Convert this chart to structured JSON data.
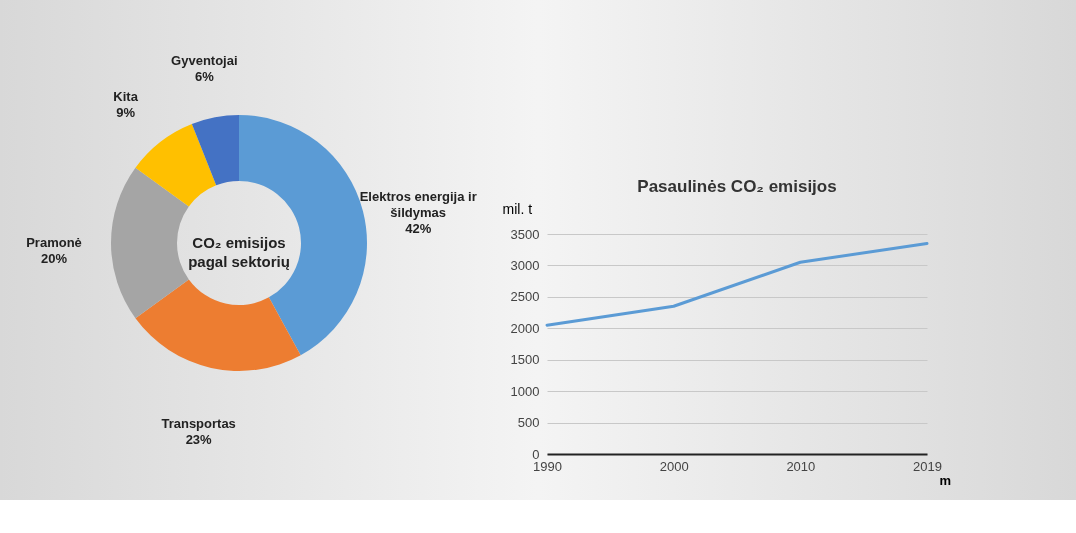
{
  "chart_data": [
    {
      "type": "donut",
      "title": "CO₂ emisijos pagal sektorių",
      "categories": [
        "Elektros energija ir šildymas",
        "Transportas",
        "Pramonė",
        "Kita",
        "Gyventojai"
      ],
      "values": [
        42,
        23,
        20,
        9,
        6
      ],
      "value_labels": [
        "42%",
        "23%",
        "20%",
        "9%",
        "6%"
      ],
      "colors": [
        "#5b9bd5",
        "#ed7d31",
        "#a5a5a5",
        "#ffc000",
        "#4472c4"
      ],
      "legend": false
    },
    {
      "type": "line",
      "title": "Pasaulinės CO₂ emisijos",
      "ylabel": "mil. t",
      "xlabel": "m",
      "categories": [
        "1990",
        "2000",
        "2010",
        "2019"
      ],
      "series": [
        {
          "color": "#5b9bd5",
          "values": [
            2050,
            2350,
            3050,
            3350
          ]
        }
      ],
      "ylim": [
        0,
        3500
      ],
      "yticks": [
        0,
        500,
        1000,
        1500,
        2000,
        2500,
        3000,
        3500
      ],
      "grid": "y",
      "marker": "none",
      "line_style": "solid",
      "legend": false
    }
  ]
}
